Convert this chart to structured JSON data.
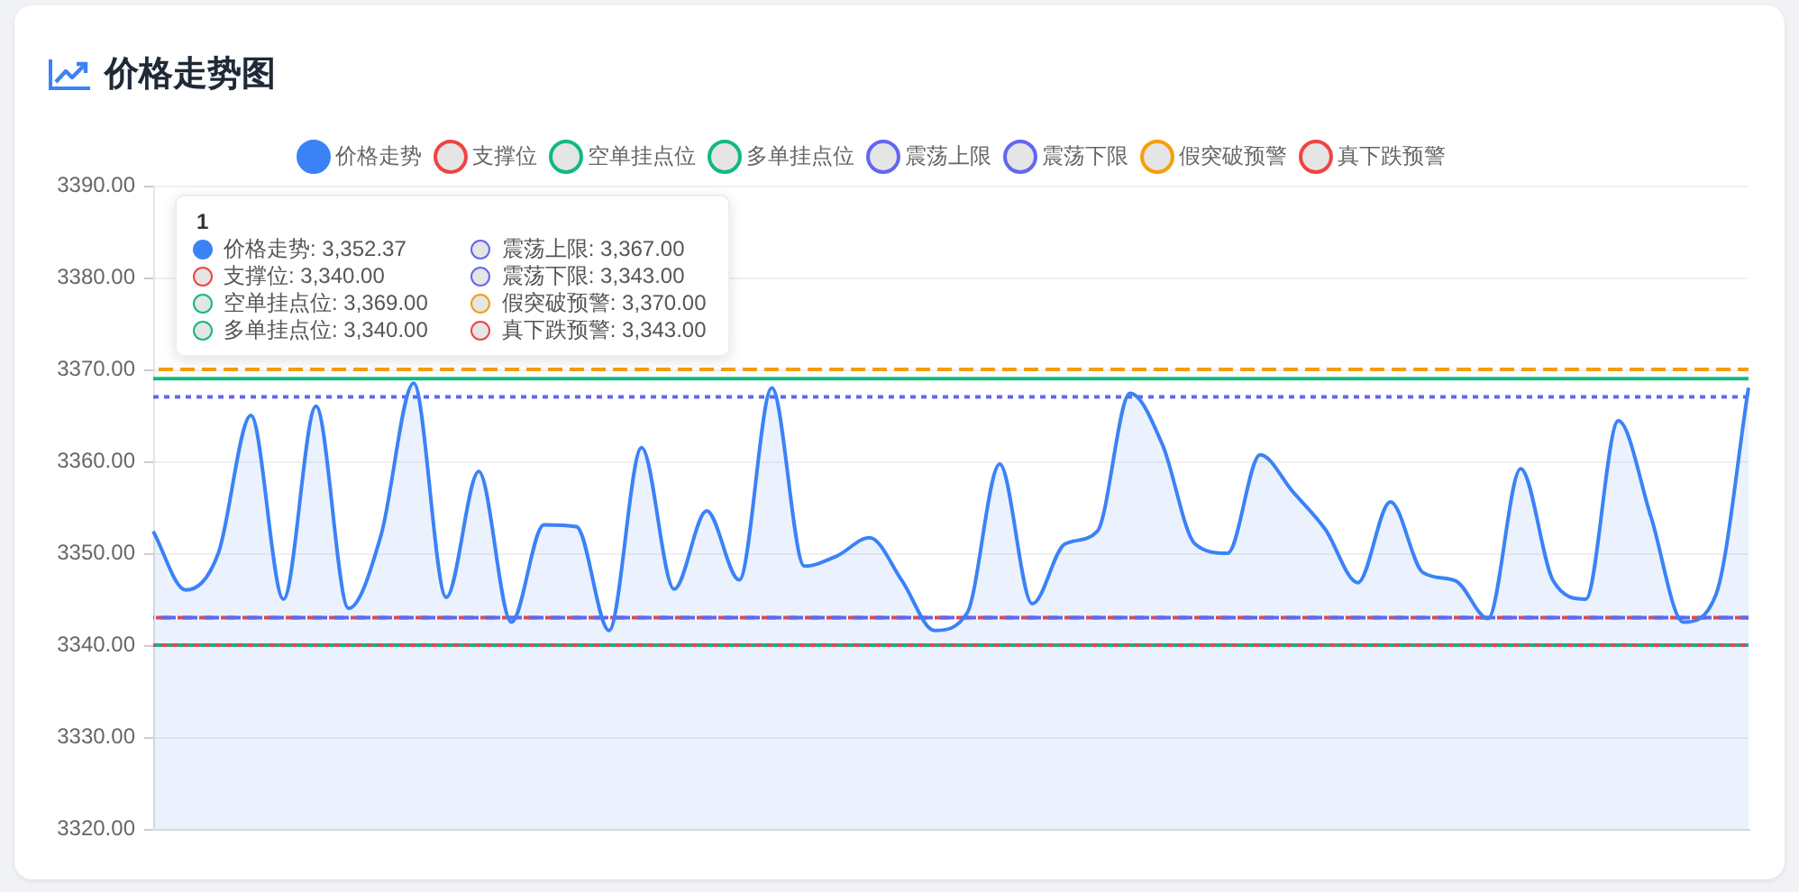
{
  "chart_data": {
    "type": "line",
    "title": "价格走势图",
    "categories": [
      null,
      null,
      null,
      null,
      null,
      null,
      null,
      null,
      null,
      null,
      null,
      null,
      null,
      null,
      null,
      null,
      null,
      null,
      null,
      null,
      null,
      null,
      null,
      null,
      null,
      null,
      null,
      null,
      null,
      null,
      null,
      null,
      null,
      null,
      null,
      null,
      null,
      null,
      null,
      null,
      null,
      null,
      null,
      null,
      null,
      null,
      null,
      null,
      null,
      null
    ],
    "series": [
      {
        "name": "价格走势",
        "type": "area",
        "color": "#3b82f6",
        "line_style": "solid",
        "values": [
          3352.37,
          3346,
          3350,
          3365,
          3345,
          3366,
          3344,
          3352,
          3368.5,
          3345.2,
          3358.9,
          3342.5,
          3353.1,
          3352.9,
          3341.6,
          3361.5,
          3346.1,
          3354.6,
          3347.1,
          3368.0,
          3348.6,
          3349.7,
          3351.7,
          3347.0,
          3341.6,
          3343.5,
          3359.7,
          3344.5,
          3351.0,
          3352.4,
          3367.4,
          3361.8,
          3351.0,
          3350.0,
          3360.7,
          3356.7,
          3352.6,
          3346.8,
          3355.6,
          3347.9,
          3347.0,
          3342.9,
          3359.2,
          3347.0,
          3345.0,
          3364.4,
          3354.0,
          3342.5,
          3345.5,
          3368.0
        ]
      },
      {
        "name": "支撑位",
        "color": "#ef4444",
        "line_style": "dotted",
        "values": [
          3340,
          3340,
          3340,
          3340,
          3340,
          3340,
          3340,
          3340,
          3340,
          3340,
          3340,
          3340,
          3340,
          3340,
          3340,
          3340,
          3340,
          3340,
          3340,
          3340,
          3340,
          3340,
          3340,
          3340,
          3340,
          3340,
          3340,
          3340,
          3340,
          3340,
          3340,
          3340,
          3340,
          3340,
          3340,
          3340,
          3340,
          3340,
          3340,
          3340,
          3340,
          3340,
          3340,
          3340,
          3340,
          3340,
          3340,
          3340,
          3340,
          3340
        ]
      },
      {
        "name": "空单挂点位",
        "color": "#10b981",
        "line_style": "solid",
        "values": [
          3369,
          3369,
          3369,
          3369,
          3369,
          3369,
          3369,
          3369,
          3369,
          3369,
          3369,
          3369,
          3369,
          3369,
          3369,
          3369,
          3369,
          3369,
          3369,
          3369,
          3369,
          3369,
          3369,
          3369,
          3369,
          3369,
          3369,
          3369,
          3369,
          3369,
          3369,
          3369,
          3369,
          3369,
          3369,
          3369,
          3369,
          3369,
          3369,
          3369,
          3369,
          3369,
          3369,
          3369,
          3369,
          3369,
          3369,
          3369,
          3369,
          3369
        ]
      },
      {
        "name": "多单挂点位",
        "color": "#10b981",
        "line_style": "dotted",
        "values": [
          3340,
          3340,
          3340,
          3340,
          3340,
          3340,
          3340,
          3340,
          3340,
          3340,
          3340,
          3340,
          3340,
          3340,
          3340,
          3340,
          3340,
          3340,
          3340,
          3340,
          3340,
          3340,
          3340,
          3340,
          3340,
          3340,
          3340,
          3340,
          3340,
          3340,
          3340,
          3340,
          3340,
          3340,
          3340,
          3340,
          3340,
          3340,
          3340,
          3340,
          3340,
          3340,
          3340,
          3340,
          3340,
          3340,
          3340,
          3340,
          3340,
          3340
        ]
      },
      {
        "name": "震荡上限",
        "color": "#6366f1",
        "line_style": "dotted",
        "values": [
          3367,
          3367,
          3367,
          3367,
          3367,
          3367,
          3367,
          3367,
          3367,
          3367,
          3367,
          3367,
          3367,
          3367,
          3367,
          3367,
          3367,
          3367,
          3367,
          3367,
          3367,
          3367,
          3367,
          3367,
          3367,
          3367,
          3367,
          3367,
          3367,
          3367,
          3367,
          3367,
          3367,
          3367,
          3367,
          3367,
          3367,
          3367,
          3367,
          3367,
          3367,
          3367,
          3367,
          3367,
          3367,
          3367,
          3367,
          3367,
          3367,
          3367
        ]
      },
      {
        "name": "震荡下限",
        "color": "#6366f1",
        "line_style": "dashed",
        "values": [
          3343,
          3343,
          3343,
          3343,
          3343,
          3343,
          3343,
          3343,
          3343,
          3343,
          3343,
          3343,
          3343,
          3343,
          3343,
          3343,
          3343,
          3343,
          3343,
          3343,
          3343,
          3343,
          3343,
          3343,
          3343,
          3343,
          3343,
          3343,
          3343,
          3343,
          3343,
          3343,
          3343,
          3343,
          3343,
          3343,
          3343,
          3343,
          3343,
          3343,
          3343,
          3343,
          3343,
          3343,
          3343,
          3343,
          3343,
          3343,
          3343,
          3343
        ]
      },
      {
        "name": "假突破预警",
        "color": "#f59e0b",
        "line_style": "dashed",
        "values": [
          3370,
          3370,
          3370,
          3370,
          3370,
          3370,
          3370,
          3370,
          3370,
          3370,
          3370,
          3370,
          3370,
          3370,
          3370,
          3370,
          3370,
          3370,
          3370,
          3370,
          3370,
          3370,
          3370,
          3370,
          3370,
          3370,
          3370,
          3370,
          3370,
          3370,
          3370,
          3370,
          3370,
          3370,
          3370,
          3370,
          3370,
          3370,
          3370,
          3370,
          3370,
          3370,
          3370,
          3370,
          3370,
          3370,
          3370,
          3370,
          3370,
          3370
        ]
      },
      {
        "name": "真下跌预警",
        "color": "#ef4444",
        "line_style": "dashed",
        "values": [
          3343,
          3343,
          3343,
          3343,
          3343,
          3343,
          3343,
          3343,
          3343,
          3343,
          3343,
          3343,
          3343,
          3343,
          3343,
          3343,
          3343,
          3343,
          3343,
          3343,
          3343,
          3343,
          3343,
          3343,
          3343,
          3343,
          3343,
          3343,
          3343,
          3343,
          3343,
          3343,
          3343,
          3343,
          3343,
          3343,
          3343,
          3343,
          3343,
          3343,
          3343,
          3343,
          3343,
          3343,
          3343,
          3343,
          3343,
          3343,
          3343,
          3343
        ]
      }
    ],
    "ylim": [
      3320,
      3390
    ],
    "yticks": [
      {
        "value": 3320,
        "label": "3320.00"
      },
      {
        "value": 3330,
        "label": "3330.00"
      },
      {
        "value": 3340,
        "label": "3340.00"
      },
      {
        "value": 3350,
        "label": "3350.00"
      },
      {
        "value": 3360,
        "label": "3360.00"
      },
      {
        "value": 3370,
        "label": "3370.00"
      },
      {
        "value": 3380,
        "label": "3380.00"
      },
      {
        "value": 3390,
        "label": "3390.00"
      }
    ],
    "grid": "y",
    "legend": "top",
    "annotations": [
      "1",
      "价格走势: 3,352.37",
      "支撑位: 3,340.00",
      "空单挂点位: 3,369.00",
      "多单挂点位: 3,340.00",
      "震荡上限: 3,367.00",
      "震荡下限: 3,343.00",
      "假突破预警: 3,370.00",
      "真下跌预警: 3,343.00"
    ]
  }
}
